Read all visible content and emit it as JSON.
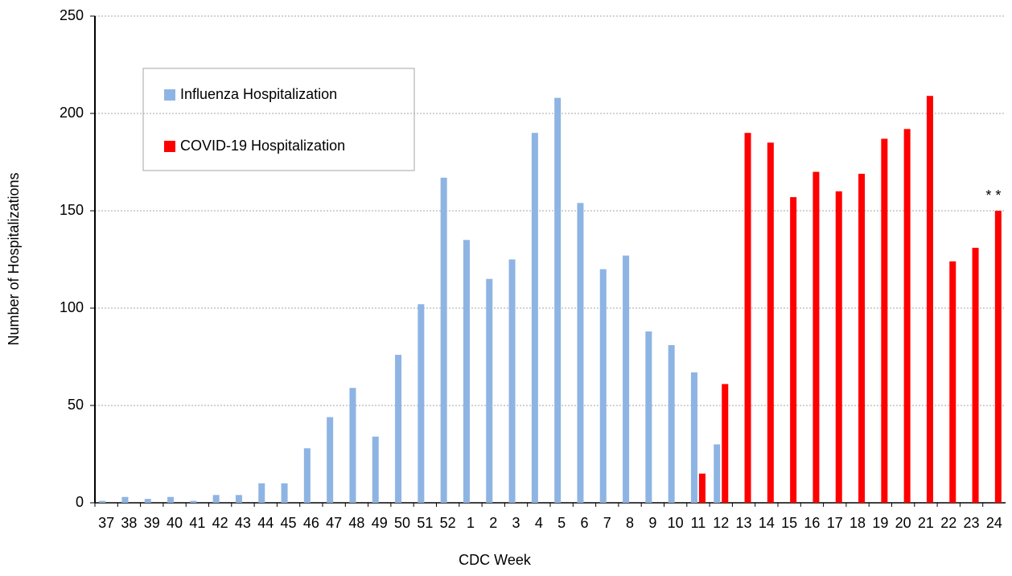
{
  "chart_data": {
    "type": "bar",
    "xlabel": "CDC Week",
    "ylabel": "Number of Hospitalizations",
    "categories": [
      "37",
      "38",
      "39",
      "40",
      "41",
      "42",
      "43",
      "44",
      "45",
      "46",
      "47",
      "48",
      "49",
      "50",
      "51",
      "52",
      "1",
      "2",
      "3",
      "4",
      "5",
      "6",
      "7",
      "8",
      "9",
      "10",
      "11",
      "12",
      "13",
      "14",
      "15",
      "16",
      "17",
      "18",
      "19",
      "20",
      "21",
      "22",
      "23",
      "24"
    ],
    "series": [
      {
        "name": "Influenza Hospitalization",
        "color": "#8eb4e3",
        "values": [
          1,
          3,
          2,
          3,
          1,
          4,
          4,
          10,
          10,
          28,
          44,
          59,
          34,
          76,
          102,
          167,
          135,
          115,
          125,
          190,
          208,
          154,
          120,
          127,
          88,
          81,
          67,
          30,
          null,
          null,
          null,
          null,
          null,
          null,
          null,
          null,
          null,
          null,
          null,
          null
        ]
      },
      {
        "name": "COVID-19 Hospitalization",
        "color": "#ff0000",
        "values": [
          null,
          null,
          null,
          null,
          null,
          null,
          null,
          null,
          null,
          null,
          null,
          null,
          null,
          null,
          null,
          null,
          null,
          null,
          null,
          null,
          null,
          null,
          null,
          null,
          null,
          null,
          15,
          61,
          190,
          185,
          157,
          170,
          160,
          169,
          187,
          192,
          209,
          124,
          131,
          150
        ]
      }
    ],
    "annotation": "* *",
    "ylim": [
      0,
      250
    ],
    "yticks": [
      0,
      50,
      100,
      150,
      200,
      250
    ],
    "grid": true,
    "legend": "upper left"
  }
}
